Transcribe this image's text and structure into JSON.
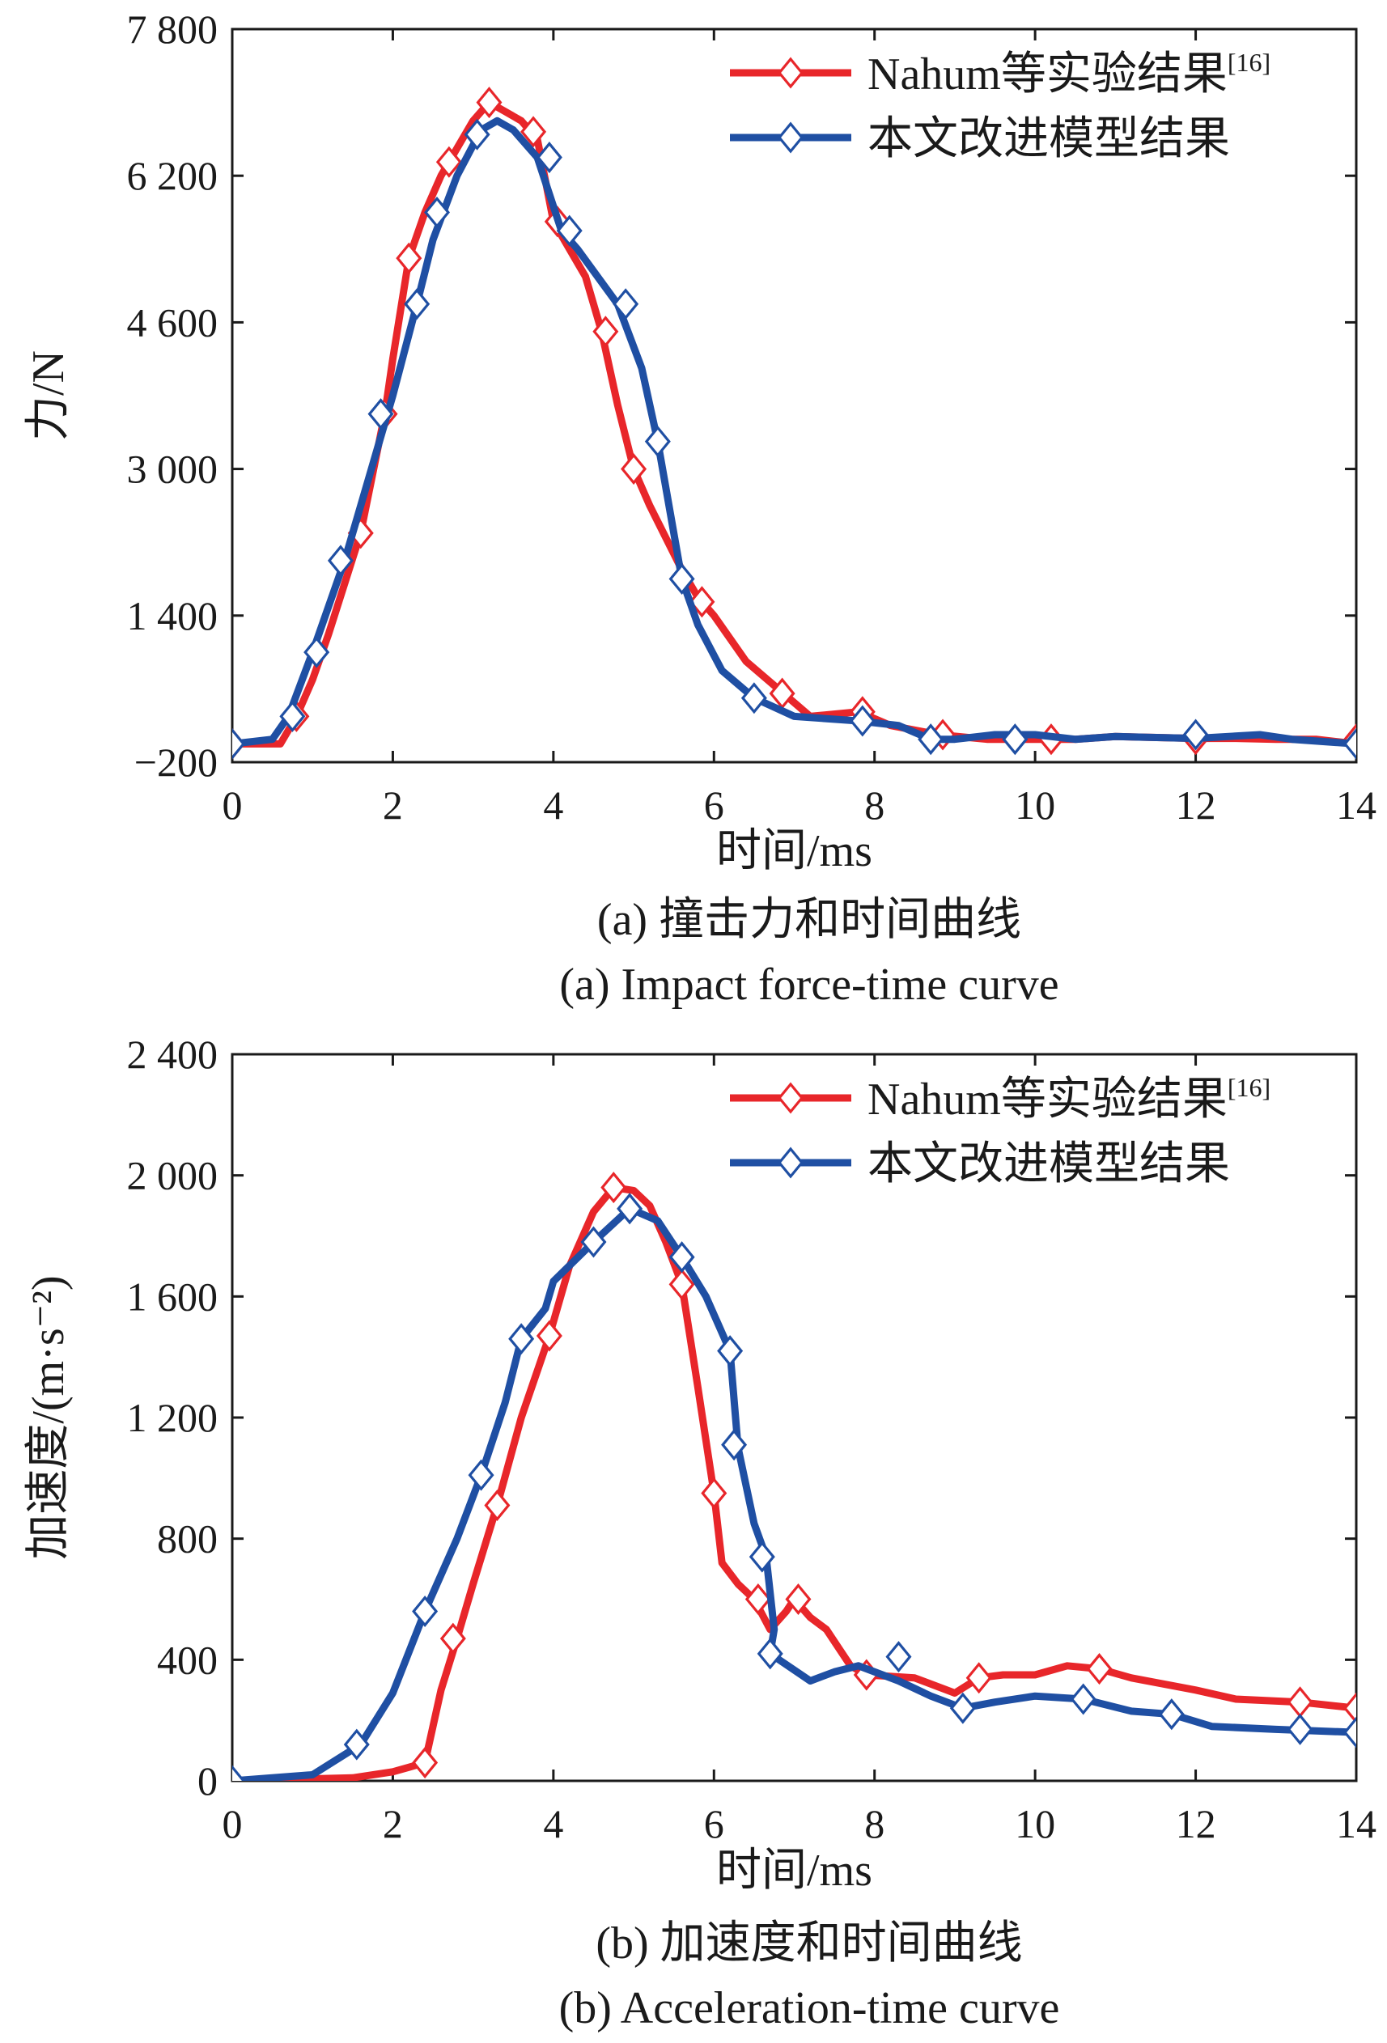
{
  "chart_data": [
    {
      "type": "line",
      "xlabel": "时间/ms",
      "ylabel": "力/N",
      "xlim": [
        0,
        14
      ],
      "ylim": [
        -200,
        7800
      ],
      "xticks": [
        0,
        2,
        4,
        6,
        8,
        10,
        12,
        14
      ],
      "yticks": [
        -200,
        1400,
        3000,
        4600,
        6200,
        7800
      ],
      "xtick_labels": [
        "0",
        "2",
        "4",
        "6",
        "8",
        "10",
        "12",
        "14"
      ],
      "ytick_labels": [
        "−200",
        "1 400",
        "3 000",
        "4 600",
        "6 200",
        "7 800"
      ],
      "grid": false,
      "legend_position": "top-right",
      "caption_zh": "(a) 撞击力和时间曲线",
      "caption_en": "(a) Impact force-time curve",
      "series": [
        {
          "name": "Nahum等实验结果",
          "name_sup": "[16]",
          "color": "#e8262a",
          "marker": "open-diamond",
          "points": [
            [
              0,
              0
            ],
            [
              0.6,
              0
            ],
            [
              0.8,
              300
            ],
            [
              1.0,
              700
            ],
            [
              1.2,
              1200
            ],
            [
              1.6,
              2300
            ],
            [
              1.9,
              3600
            ],
            [
              2.0,
              4200
            ],
            [
              2.2,
              5300
            ],
            [
              2.4,
              5800
            ],
            [
              2.6,
              6200
            ],
            [
              2.8,
              6500
            ],
            [
              3.0,
              6800
            ],
            [
              3.2,
              7000
            ],
            [
              3.4,
              6900
            ],
            [
              3.6,
              6800
            ],
            [
              3.8,
              6600
            ],
            [
              4.0,
              5700
            ],
            [
              4.2,
              5400
            ],
            [
              4.4,
              5100
            ],
            [
              4.6,
              4500
            ],
            [
              4.8,
              3700
            ],
            [
              5.0,
              3000
            ],
            [
              5.2,
              2600
            ],
            [
              5.6,
              1900
            ],
            [
              5.8,
              1600
            ],
            [
              6.0,
              1400
            ],
            [
              6.4,
              900
            ],
            [
              6.8,
              600
            ],
            [
              7.2,
              300
            ],
            [
              7.8,
              350
            ],
            [
              8.2,
              200
            ],
            [
              8.8,
              100
            ],
            [
              9.4,
              50
            ],
            [
              10,
              50
            ],
            [
              10.5,
              50
            ],
            [
              11,
              80
            ],
            [
              12,
              60
            ],
            [
              12.5,
              60
            ],
            [
              13,
              50
            ],
            [
              13.5,
              50
            ],
            [
              14,
              0
            ]
          ],
          "markers": [
            [
              0,
              0
            ],
            [
              0.8,
              300
            ],
            [
              1.6,
              2300
            ],
            [
              1.9,
              3600
            ],
            [
              2.2,
              5300
            ],
            [
              2.7,
              6350
            ],
            [
              3.2,
              7000
            ],
            [
              3.75,
              6680
            ],
            [
              4.05,
              5700
            ],
            [
              4.65,
              4500
            ],
            [
              5.0,
              3000
            ],
            [
              5.85,
              1550
            ],
            [
              6.85,
              550
            ],
            [
              7.85,
              350
            ],
            [
              8.85,
              100
            ],
            [
              10.2,
              50
            ],
            [
              12.0,
              50
            ],
            [
              14,
              50
            ]
          ]
        },
        {
          "name": "本文改进模型结果",
          "color": "#1f4fa3",
          "marker": "open-diamond",
          "points": [
            [
              0,
              0
            ],
            [
              0.5,
              50
            ],
            [
              0.7,
              300
            ],
            [
              1.0,
              1000
            ],
            [
              1.4,
              2000
            ],
            [
              1.7,
              2900
            ],
            [
              2.0,
              3800
            ],
            [
              2.3,
              4800
            ],
            [
              2.5,
              5500
            ],
            [
              2.8,
              6200
            ],
            [
              3.1,
              6700
            ],
            [
              3.3,
              6800
            ],
            [
              3.5,
              6700
            ],
            [
              3.8,
              6400
            ],
            [
              4.1,
              5600
            ],
            [
              4.3,
              5400
            ],
            [
              4.8,
              4800
            ],
            [
              5.1,
              4100
            ],
            [
              5.3,
              3300
            ],
            [
              5.6,
              1800
            ],
            [
              5.8,
              1300
            ],
            [
              6.1,
              800
            ],
            [
              6.5,
              500
            ],
            [
              7.0,
              300
            ],
            [
              7.8,
              250
            ],
            [
              8.3,
              200
            ],
            [
              8.7,
              50
            ],
            [
              9.0,
              50
            ],
            [
              9.5,
              100
            ],
            [
              10,
              100
            ],
            [
              10.5,
              50
            ],
            [
              11,
              80
            ],
            [
              12,
              60
            ],
            [
              12.8,
              100
            ],
            [
              13.2,
              50
            ],
            [
              14,
              0
            ]
          ],
          "markers": [
            [
              0,
              0
            ],
            [
              0.75,
              300
            ],
            [
              1.05,
              1000
            ],
            [
              1.35,
              2000
            ],
            [
              1.85,
              3600
            ],
            [
              2.3,
              4800
            ],
            [
              2.55,
              5800
            ],
            [
              3.05,
              6650
            ],
            [
              3.95,
              6400
            ],
            [
              4.2,
              5600
            ],
            [
              4.9,
              4800
            ],
            [
              5.3,
              3300
            ],
            [
              5.6,
              1800
            ],
            [
              6.5,
              500
            ],
            [
              7.85,
              250
            ],
            [
              8.7,
              50
            ],
            [
              9.75,
              50
            ],
            [
              12.0,
              100
            ],
            [
              14,
              0
            ]
          ]
        }
      ]
    },
    {
      "type": "line",
      "xlabel": "时间/ms",
      "ylabel": "加速度/(m·s⁻²)",
      "xlim": [
        0,
        14
      ],
      "ylim": [
        0,
        2400
      ],
      "xticks": [
        0,
        2,
        4,
        6,
        8,
        10,
        12,
        14
      ],
      "yticks": [
        0,
        400,
        800,
        1200,
        1600,
        2000,
        2400
      ],
      "xtick_labels": [
        "0",
        "2",
        "4",
        "6",
        "8",
        "10",
        "12",
        "14"
      ],
      "ytick_labels": [
        "0",
        "400",
        "800",
        "1 200",
        "1 600",
        "2 000",
        "2 400"
      ],
      "grid": false,
      "legend_position": "top-right",
      "caption_zh": "(b) 加速度和时间曲线",
      "caption_en": "(b) Acceleration-time curve",
      "series": [
        {
          "name": "Nahum等实验结果",
          "name_sup": "[16]",
          "color": "#e8262a",
          "marker": "open-diamond",
          "points": [
            [
              0,
              0
            ],
            [
              1.5,
              10
            ],
            [
              2.0,
              30
            ],
            [
              2.4,
              60
            ],
            [
              2.6,
              300
            ],
            [
              2.8,
              470
            ],
            [
              3.0,
              650
            ],
            [
              3.3,
              910
            ],
            [
              3.6,
              1200
            ],
            [
              3.95,
              1470
            ],
            [
              4.2,
              1700
            ],
            [
              4.5,
              1880
            ],
            [
              4.75,
              1960
            ],
            [
              5.0,
              1950
            ],
            [
              5.2,
              1900
            ],
            [
              5.4,
              1780
            ],
            [
              5.6,
              1640
            ],
            [
              5.8,
              1300
            ],
            [
              6.0,
              950
            ],
            [
              6.1,
              720
            ],
            [
              6.3,
              650
            ],
            [
              6.5,
              600
            ],
            [
              6.7,
              500
            ],
            [
              6.9,
              560
            ],
            [
              7.0,
              600
            ],
            [
              7.2,
              540
            ],
            [
              7.4,
              500
            ],
            [
              7.7,
              380
            ],
            [
              7.9,
              350
            ],
            [
              8.5,
              340
            ],
            [
              9.0,
              290
            ],
            [
              9.3,
              340
            ],
            [
              9.6,
              350
            ],
            [
              10,
              350
            ],
            [
              10.4,
              380
            ],
            [
              10.8,
              370
            ],
            [
              11.2,
              340
            ],
            [
              11.6,
              320
            ],
            [
              12,
              300
            ],
            [
              12.5,
              270
            ],
            [
              13.3,
              260
            ],
            [
              14,
              240
            ]
          ],
          "markers": [
            [
              2.4,
              60
            ],
            [
              2.75,
              470
            ],
            [
              3.3,
              910
            ],
            [
              3.95,
              1470
            ],
            [
              4.75,
              1960
            ],
            [
              5.6,
              1640
            ],
            [
              6.0,
              950
            ],
            [
              6.55,
              600
            ],
            [
              7.05,
              600
            ],
            [
              7.9,
              350
            ],
            [
              9.3,
              340
            ],
            [
              10.8,
              370
            ],
            [
              13.3,
              260
            ],
            [
              14,
              240
            ]
          ]
        },
        {
          "name": "本文改进模型结果",
          "color": "#1f4fa3",
          "marker": "open-diamond",
          "points": [
            [
              0,
              0
            ],
            [
              1.0,
              20
            ],
            [
              1.6,
              120
            ],
            [
              2.0,
              290
            ],
            [
              2.4,
              560
            ],
            [
              2.8,
              800
            ],
            [
              3.1,
              1010
            ],
            [
              3.4,
              1250
            ],
            [
              3.6,
              1460
            ],
            [
              3.9,
              1560
            ],
            [
              4.0,
              1650
            ],
            [
              4.5,
              1780
            ],
            [
              4.95,
              1890
            ],
            [
              5.3,
              1850
            ],
            [
              5.6,
              1730
            ],
            [
              5.9,
              1600
            ],
            [
              6.2,
              1420
            ],
            [
              6.3,
              1100
            ],
            [
              6.5,
              850
            ],
            [
              6.65,
              740
            ],
            [
              6.75,
              500
            ],
            [
              6.7,
              420
            ],
            [
              7.2,
              330
            ],
            [
              7.5,
              360
            ],
            [
              7.8,
              380
            ],
            [
              8.3,
              330
            ],
            [
              8.7,
              280
            ],
            [
              9.1,
              240
            ],
            [
              9.5,
              260
            ],
            [
              10,
              280
            ],
            [
              10.6,
              270
            ],
            [
              11.2,
              230
            ],
            [
              11.7,
              220
            ],
            [
              12.2,
              180
            ],
            [
              13,
              170
            ],
            [
              14,
              160
            ]
          ],
          "markers": [
            [
              0,
              0
            ],
            [
              1.55,
              120
            ],
            [
              2.4,
              560
            ],
            [
              3.1,
              1010
            ],
            [
              3.6,
              1460
            ],
            [
              4.5,
              1780
            ],
            [
              4.95,
              1890
            ],
            [
              5.6,
              1730
            ],
            [
              6.2,
              1420
            ],
            [
              6.25,
              1110
            ],
            [
              6.6,
              740
            ],
            [
              6.7,
              420
            ],
            [
              8.3,
              410
            ],
            [
              9.1,
              240
            ],
            [
              10.6,
              270
            ],
            [
              11.7,
              220
            ],
            [
              13.3,
              170
            ],
            [
              14,
              160
            ]
          ]
        }
      ]
    }
  ]
}
